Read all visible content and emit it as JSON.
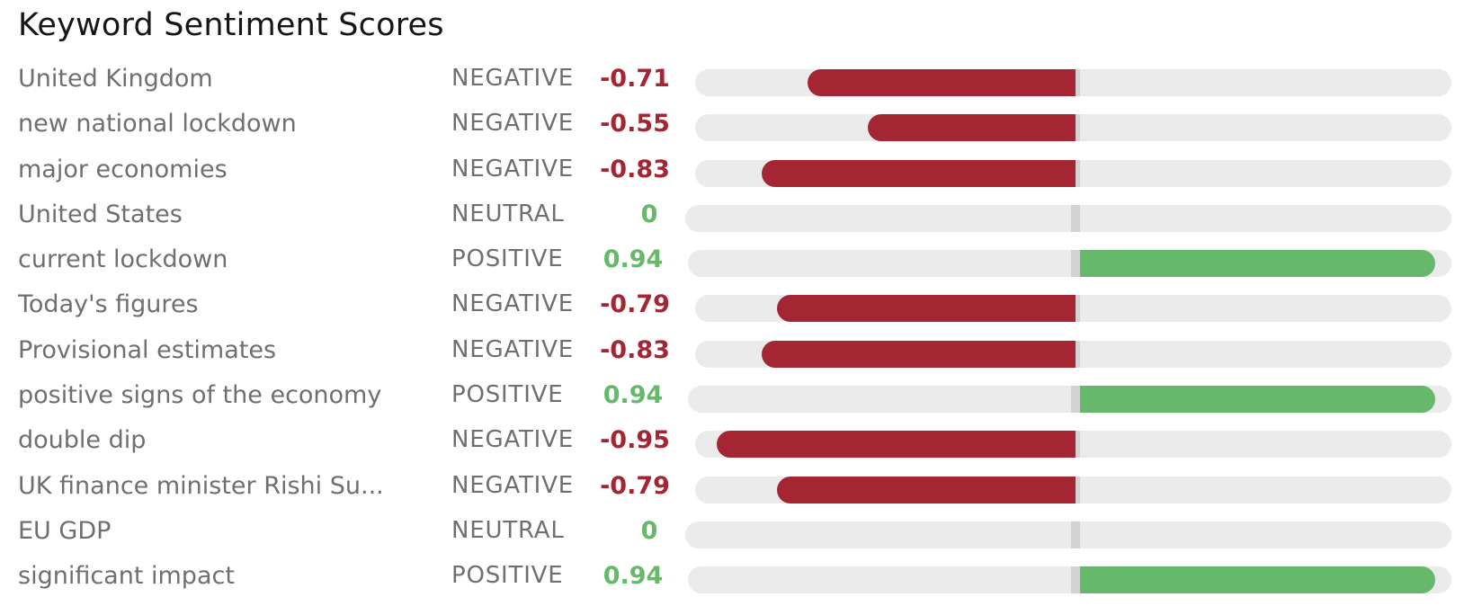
{
  "colors": {
    "negative": "#a52633",
    "positive": "#66b96b",
    "neutral": "#66b96b",
    "track": "#ebebeb",
    "zero_marker": "#d3d3d3"
  },
  "chart_data": {
    "type": "bar",
    "title": "Keyword Sentiment Scores",
    "xlim": [
      -1,
      1
    ],
    "grid": false,
    "rows": [
      {
        "keyword": "United Kingdom",
        "label": "NEGATIVE",
        "score": -0.71,
        "score_text": "-0.71"
      },
      {
        "keyword": "new national lockdown",
        "label": "NEGATIVE",
        "score": -0.55,
        "score_text": "-0.55"
      },
      {
        "keyword": "major economies",
        "label": "NEGATIVE",
        "score": -0.83,
        "score_text": "-0.83"
      },
      {
        "keyword": "United States",
        "label": "NEUTRAL",
        "score": 0,
        "score_text": "0"
      },
      {
        "keyword": "current lockdown",
        "label": "POSITIVE",
        "score": 0.94,
        "score_text": "0.94"
      },
      {
        "keyword": "Today's figures",
        "label": "NEGATIVE",
        "score": -0.79,
        "score_text": "-0.79"
      },
      {
        "keyword": "Provisional estimates",
        "label": "NEGATIVE",
        "score": -0.83,
        "score_text": "-0.83"
      },
      {
        "keyword": "positive signs of the economy",
        "label": "POSITIVE",
        "score": 0.94,
        "score_text": "0.94"
      },
      {
        "keyword": "double dip",
        "label": "NEGATIVE",
        "score": -0.95,
        "score_text": "-0.95"
      },
      {
        "keyword": "UK finance minister Rishi Su...",
        "label": "NEGATIVE",
        "score": -0.79,
        "score_text": "-0.79"
      },
      {
        "keyword": "EU GDP",
        "label": "NEUTRAL",
        "score": 0,
        "score_text": "0"
      },
      {
        "keyword": "significant impact",
        "label": "POSITIVE",
        "score": 0.94,
        "score_text": "0.94"
      }
    ]
  }
}
